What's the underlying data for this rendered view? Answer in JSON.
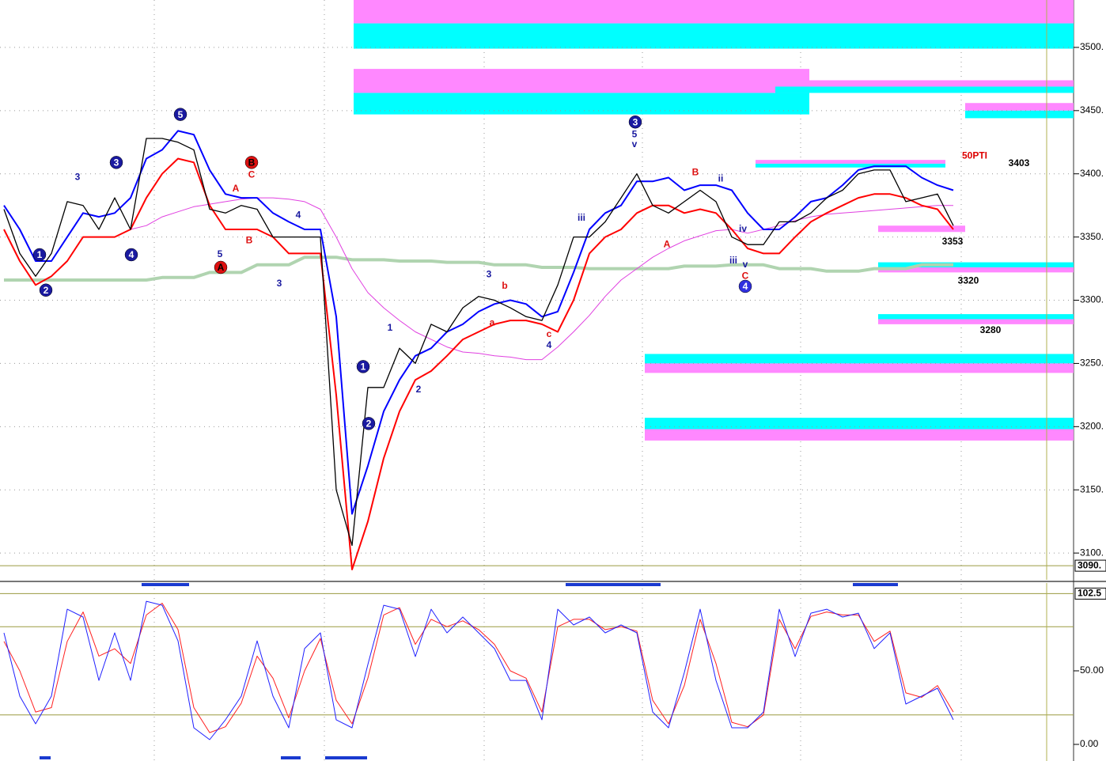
{
  "chart_data": [
    {
      "type": "line",
      "ylim": [
        3078.8,
        3537.5
      ],
      "xlim": [
        -0.25,
        67.6
      ],
      "yticks": [
        {
          "value": 3100,
          "label": "3100."
        },
        {
          "value": 3150,
          "label": "3150."
        },
        {
          "value": 3200,
          "label": "3200."
        },
        {
          "value": 3250,
          "label": "3250."
        },
        {
          "value": 3300,
          "label": "3300."
        },
        {
          "value": 3350,
          "label": "3350."
        },
        {
          "value": 3400,
          "label": "3400."
        },
        {
          "value": 3450,
          "label": "3450."
        },
        {
          "value": 3500,
          "label": "3500."
        }
      ],
      "grid": true,
      "last": {
        "value": 3090,
        "label": "3090."
      },
      "cursor_x": 65.9,
      "series": [
        {
          "color": "#000000",
          "width": 1.3,
          "values": [
            3372,
            3337,
            3319,
            3337,
            3378,
            3375,
            3356,
            3381,
            3356,
            3428,
            3428,
            3425,
            3419,
            3372,
            3369,
            3375,
            3372,
            3350,
            3350,
            3350,
            3350,
            3150,
            3106,
            3231,
            3231,
            3262,
            3250,
            3281,
            3275,
            3294,
            3303,
            3300,
            3294,
            3287,
            3284,
            3312,
            3350,
            3350,
            3362,
            3381,
            3400,
            3375,
            3369,
            3378,
            3387,
            3378,
            3350,
            3344,
            3344,
            3362,
            3362,
            3369,
            3381,
            3387,
            3400,
            3403,
            3403,
            3378,
            3381,
            3384,
            3359
          ]
        },
        {
          "color": "#0000ff",
          "width": 2,
          "values": [
            3375,
            3356,
            3331,
            3331,
            3350,
            3369,
            3366,
            3369,
            3381,
            3412,
            3419,
            3434,
            3431,
            3403,
            3384,
            3381,
            3381,
            3369,
            3362,
            3356,
            3356,
            3287,
            3131,
            3169,
            3212,
            3237,
            3256,
            3262,
            3275,
            3281,
            3291,
            3297,
            3300,
            3297,
            3287,
            3291,
            3322,
            3356,
            3369,
            3375,
            3394,
            3394,
            3397,
            3387,
            3391,
            3391,
            3387,
            3369,
            3356,
            3356,
            3366,
            3378,
            3381,
            3391,
            3403,
            3406,
            3406,
            3406,
            3397,
            3391,
            3387
          ]
        },
        {
          "color": "#ff0000",
          "width": 2,
          "values": [
            3356,
            3331,
            3312,
            3319,
            3331,
            3350,
            3350,
            3350,
            3356,
            3381,
            3400,
            3412,
            3409,
            3375,
            3356,
            3356,
            3356,
            3350,
            3337,
            3337,
            3337,
            3225,
            3087,
            3125,
            3175,
            3212,
            3237,
            3244,
            3256,
            3269,
            3275,
            3281,
            3284,
            3284,
            3281,
            3275,
            3300,
            3337,
            3350,
            3356,
            3369,
            3375,
            3375,
            3369,
            3372,
            3369,
            3356,
            3341,
            3337,
            3337,
            3350,
            3362,
            3369,
            3375,
            3381,
            3384,
            3384,
            3381,
            3375,
            3372,
            3356
          ]
        },
        {
          "color": "#e040e0",
          "width": 1,
          "values": [
            null,
            null,
            null,
            null,
            null,
            null,
            null,
            null,
            3356,
            3359,
            3366,
            3370,
            3374,
            3376,
            3378,
            3380,
            3381,
            3381,
            3380,
            3378,
            3372,
            3350,
            3325,
            3306,
            3294,
            3284,
            3275,
            3269,
            3263,
            3259,
            3258,
            3256,
            3255,
            3253,
            3253,
            3263,
            3275,
            3288,
            3303,
            3316,
            3325,
            3334,
            3341,
            3347,
            3351,
            3355,
            3356,
            3353,
            3356,
            3359,
            3363,
            3366,
            3368,
            3369,
            3370,
            3371,
            3372,
            3373,
            3374,
            3375,
            3375
          ]
        },
        {
          "color": "#b0d4b0",
          "width": 4,
          "values": [
            3316,
            3316,
            3316,
            3316,
            3316,
            3316,
            3316,
            3316,
            3316,
            3316,
            3318,
            3318,
            3318,
            3322,
            3322,
            3322,
            3328,
            3328,
            3328,
            3334,
            3334,
            3334,
            3332,
            3332,
            3332,
            3331,
            3331,
            3331,
            3330,
            3330,
            3330,
            3328,
            3328,
            3328,
            3326,
            3326,
            3326,
            3325,
            3325,
            3325,
            3325,
            3325,
            3325,
            3327,
            3327,
            3327,
            3328,
            3328,
            3328,
            3325,
            3325,
            3325,
            3323,
            3323,
            3323,
            3325,
            3325,
            3325,
            3328,
            3328,
            3328
          ]
        }
      ],
      "zones": [
        {
          "from": 22.1,
          "to": 67.6,
          "bands": [
            {
              "lo": 3519,
              "hi": 3537.5,
              "color": "#ff88ff"
            },
            {
              "lo": 3499,
              "hi": 3519,
              "color": "#00ffff"
            }
          ]
        },
        {
          "from": 22.1,
          "to": 50.9,
          "bands": [
            {
              "lo": 3464,
              "hi": 3483,
              "color": "#ff88ff"
            },
            {
              "lo": 3447,
              "hi": 3464,
              "color": "#00ffff"
            }
          ]
        },
        {
          "from": 48.75,
          "to": 67.6,
          "bands": [
            {
              "lo": 3469,
              "hi": 3474,
              "color": "#ff88ff"
            },
            {
              "lo": 3464,
              "hi": 3469,
              "color": "#00ffff"
            }
          ]
        },
        {
          "from": 60.75,
          "to": 67.6,
          "bands": [
            {
              "lo": 3450,
              "hi": 3456,
              "color": "#ff88ff"
            },
            {
              "lo": 3444,
              "hi": 3450,
              "color": "#00ffff"
            }
          ]
        },
        {
          "from": 47.5,
          "to": 59.5,
          "bands": [
            {
              "lo": 3408,
              "hi": 3411,
              "color": "#ff88ff"
            },
            {
              "lo": 3405,
              "hi": 3408,
              "color": "#00ffff"
            }
          ]
        },
        {
          "from": 55.25,
          "to": 60.75,
          "bands": [
            {
              "lo": 3354,
              "hi": 3359,
              "color": "#ff88ff"
            }
          ]
        },
        {
          "from": 55.25,
          "to": 67.6,
          "bands": [
            {
              "lo": 3326,
              "hi": 3330,
              "color": "#00ffff"
            },
            {
              "lo": 3322,
              "hi": 3326,
              "color": "#ff88ff"
            }
          ]
        },
        {
          "from": 55.25,
          "to": 67.6,
          "bands": [
            {
              "lo": 3285,
              "hi": 3289,
              "color": "#00ffff"
            },
            {
              "lo": 3281,
              "hi": 3285,
              "color": "#ff88ff"
            }
          ]
        },
        {
          "from": 40.5,
          "to": 67.6,
          "bands": [
            {
              "lo": 3250,
              "hi": 3257.5,
              "color": "#00ffff"
            },
            {
              "lo": 3242.5,
              "hi": 3250,
              "color": "#ff88ff"
            }
          ]
        },
        {
          "from": 40.5,
          "to": 67.6,
          "bands": [
            {
              "lo": 3198,
              "hi": 3207,
              "color": "#00ffff"
            },
            {
              "lo": 3189,
              "hi": 3198,
              "color": "#ff88ff"
            }
          ]
        }
      ],
      "annotations": [
        {
          "text": "3403",
          "x": 64.15,
          "y": 3408,
          "color": "#000000"
        },
        {
          "text": "3353",
          "x": 59.95,
          "y": 3346,
          "color": "#000000"
        },
        {
          "text": "3320",
          "x": 60.95,
          "y": 3315,
          "color": "#000000"
        },
        {
          "text": "3280",
          "x": 62.35,
          "y": 3276,
          "color": "#000000"
        },
        {
          "text": "50PTI",
          "x": 61.35,
          "y": 3414,
          "color": "#dd0000"
        },
        {
          "text": "1",
          "x": 2.25,
          "y": 3336,
          "color": "#1a1aa0",
          "circle": true
        },
        {
          "text": "2",
          "x": 2.65,
          "y": 3308,
          "color": "#1a1aa0",
          "circle": true
        },
        {
          "text": "3",
          "x": 7.1,
          "y": 3409,
          "color": "#1a1aa0",
          "circle": true
        },
        {
          "text": "4",
          "x": 8.05,
          "y": 3336,
          "color": "#1a1aa0",
          "circle": true
        },
        {
          "text": "5",
          "x": 11.15,
          "y": 3447,
          "color": "#1a1aa0",
          "circle": true
        },
        {
          "text": "1",
          "x": 22.7,
          "y": 3247.5,
          "color": "#1a1aa0",
          "circle": true
        },
        {
          "text": "2",
          "x": 23.05,
          "y": 3202.5,
          "color": "#1a1aa0",
          "circle": true
        },
        {
          "text": "3",
          "x": 39.9,
          "y": 3441,
          "color": "#1a1aa0",
          "circle": true
        },
        {
          "text": "4",
          "x": 46.85,
          "y": 3311,
          "color": "#3030e0",
          "circle": true
        },
        {
          "text": "B",
          "x": 15.65,
          "y": 3409,
          "color": "#dd1010",
          "circle": true
        },
        {
          "text": "A",
          "x": 13.7,
          "y": 3326,
          "color": "#dd1010",
          "circle": true
        },
        {
          "text": "3",
          "x": 4.65,
          "y": 3397,
          "color": "#1a1aa0"
        },
        {
          "text": "A",
          "x": 14.65,
          "y": 3388,
          "color": "#dd1010"
        },
        {
          "text": "C",
          "x": 15.65,
          "y": 3399,
          "color": "#dd1010"
        },
        {
          "text": "B",
          "x": 15.5,
          "y": 3347,
          "color": "#dd1010"
        },
        {
          "text": "5",
          "x": 13.65,
          "y": 3336,
          "color": "#1a1aa0"
        },
        {
          "text": "3",
          "x": 17.4,
          "y": 3313,
          "color": "#1a1aa0"
        },
        {
          "text": "4",
          "x": 18.6,
          "y": 3367,
          "color": "#1a1aa0"
        },
        {
          "text": "1",
          "x": 24.4,
          "y": 3278,
          "color": "#1a1aa0"
        },
        {
          "text": "2",
          "x": 26.2,
          "y": 3229,
          "color": "#1a1aa0"
        },
        {
          "text": "3",
          "x": 30.65,
          "y": 3320,
          "color": "#1a1aa0"
        },
        {
          "text": "a",
          "x": 30.85,
          "y": 3282,
          "color": "#dd1010"
        },
        {
          "text": "b",
          "x": 31.65,
          "y": 3311,
          "color": "#dd1010"
        },
        {
          "text": "c",
          "x": 34.45,
          "y": 3273,
          "color": "#dd1010"
        },
        {
          "text": "4",
          "x": 34.45,
          "y": 3264,
          "color": "#1a1aa0"
        },
        {
          "text": "iii",
          "x": 36.5,
          "y": 3365,
          "color": "#1a1aa0"
        },
        {
          "text": "5",
          "x": 39.85,
          "y": 3431,
          "color": "#1a1aa0"
        },
        {
          "text": "v",
          "x": 39.85,
          "y": 3423,
          "color": "#1a1aa0"
        },
        {
          "text": "A",
          "x": 41.9,
          "y": 3344,
          "color": "#dd1010"
        },
        {
          "text": "B",
          "x": 43.7,
          "y": 3401,
          "color": "#dd1010"
        },
        {
          "text": "ii",
          "x": 45.3,
          "y": 3396,
          "color": "#1a1aa0"
        },
        {
          "text": "iii",
          "x": 46.1,
          "y": 3331,
          "color": "#1a1aa0"
        },
        {
          "text": "iv",
          "x": 46.7,
          "y": 3356,
          "color": "#1a1aa0"
        },
        {
          "text": "v",
          "x": 46.85,
          "y": 3328,
          "color": "#1a1aa0"
        },
        {
          "text": "C",
          "x": 46.85,
          "y": 3319,
          "color": "#dd1010"
        }
      ]
    },
    {
      "type": "line",
      "ylim": [
        -11.3,
        109.7
      ],
      "xlim": [
        -0.25,
        67.6
      ],
      "yticks": [
        {
          "value": 0,
          "label": "0.00"
        },
        {
          "value": 50,
          "label": "50.00"
        }
      ],
      "levels": [
        20,
        80
      ],
      "last": {
        "value": 102.5,
        "label": "102.5"
      },
      "cursor_x": 65.9,
      "series": [
        {
          "color": "#2020ff",
          "width": 1,
          "values": [
            75.8,
            32.8,
            14.0,
            32.8,
            91.9,
            86.6,
            43.5,
            75.8,
            43.5,
            97.3,
            94.6,
            70.4,
            11.3,
            3.2,
            16.7,
            32.8,
            70.4,
            32.8,
            11.3,
            65.1,
            75.8,
            16.7,
            11.3,
            54.3,
            94.6,
            91.9,
            59.7,
            91.9,
            75.8,
            86.6,
            75.8,
            65.1,
            43.5,
            43.5,
            16.7,
            91.9,
            81.2,
            86.6,
            75.8,
            81.2,
            75.8,
            22.0,
            11.3,
            48.9,
            91.9,
            43.5,
            11.3,
            11.3,
            22.0,
            91.9,
            59.7,
            89.2,
            91.9,
            86.6,
            89.2,
            65.1,
            75.8,
            27.4,
            32.8,
            38.2,
            16.7
          ]
        },
        {
          "color": "#ff2020",
          "width": 1,
          "values": [
            70,
            50,
            22,
            25,
            70,
            90,
            60,
            65,
            55,
            88,
            96,
            78,
            25,
            8,
            12,
            28,
            60,
            45,
            18,
            50,
            72,
            30,
            14,
            45,
            88,
            93,
            68,
            85,
            80,
            84,
            78,
            68,
            50,
            45,
            22,
            80,
            85,
            85,
            78,
            80,
            77,
            30,
            14,
            40,
            85,
            55,
            15,
            12,
            20,
            85,
            65,
            87,
            90,
            88,
            88,
            70,
            77,
            35,
            32,
            40,
            22
          ]
        }
      ]
    }
  ]
}
